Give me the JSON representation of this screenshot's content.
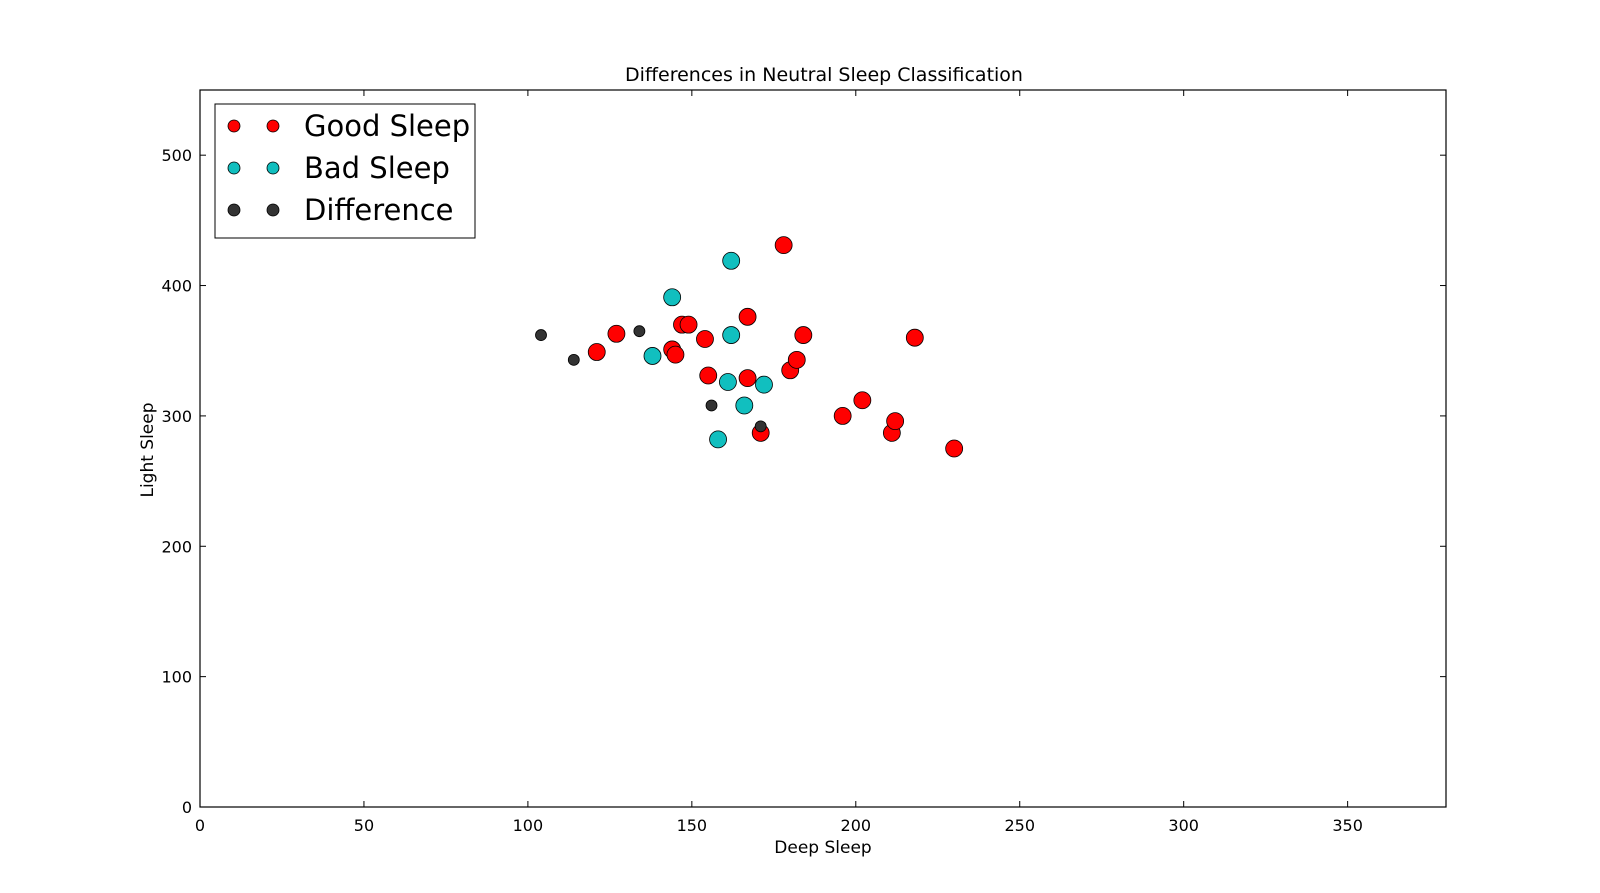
{
  "chart_data": {
    "type": "scatter",
    "title": "Differences in Neutral Sleep Classification",
    "xlabel": "Deep Sleep",
    "ylabel": "Light Sleep",
    "xlim": [
      0,
      380
    ],
    "ylim": [
      0,
      550
    ],
    "xticks": [
      0,
      50,
      100,
      150,
      200,
      250,
      300,
      350
    ],
    "yticks": [
      0,
      100,
      200,
      300,
      400,
      500
    ],
    "grid": false,
    "legend_position": "top-left",
    "series": [
      {
        "name": "Good Sleep",
        "color": "#ff0000",
        "marker_size": "large",
        "points": [
          [
            121,
            349
          ],
          [
            127,
            363
          ],
          [
            144,
            351
          ],
          [
            145,
            347
          ],
          [
            147,
            370
          ],
          [
            149,
            370
          ],
          [
            154,
            359
          ],
          [
            155,
            331
          ],
          [
            167,
            376
          ],
          [
            167,
            329
          ],
          [
            171,
            287
          ],
          [
            178,
            431
          ],
          [
            180,
            335
          ],
          [
            182,
            343
          ],
          [
            184,
            362
          ],
          [
            196,
            300
          ],
          [
            202,
            312
          ],
          [
            211,
            287
          ],
          [
            212,
            296
          ],
          [
            218,
            360
          ],
          [
            230,
            275
          ]
        ]
      },
      {
        "name": "Bad Sleep",
        "color": "#11bfbf",
        "marker_size": "large",
        "points": [
          [
            138,
            346
          ],
          [
            144,
            391
          ],
          [
            158,
            282
          ],
          [
            161,
            326
          ],
          [
            162,
            419
          ],
          [
            162,
            362
          ],
          [
            166,
            308
          ],
          [
            172,
            324
          ]
        ]
      },
      {
        "name": "Difference",
        "color": "#333333",
        "marker_size": "small",
        "points": [
          [
            104,
            362
          ],
          [
            114,
            343
          ],
          [
            134,
            365
          ],
          [
            156,
            308
          ],
          [
            171,
            292
          ]
        ]
      }
    ]
  }
}
